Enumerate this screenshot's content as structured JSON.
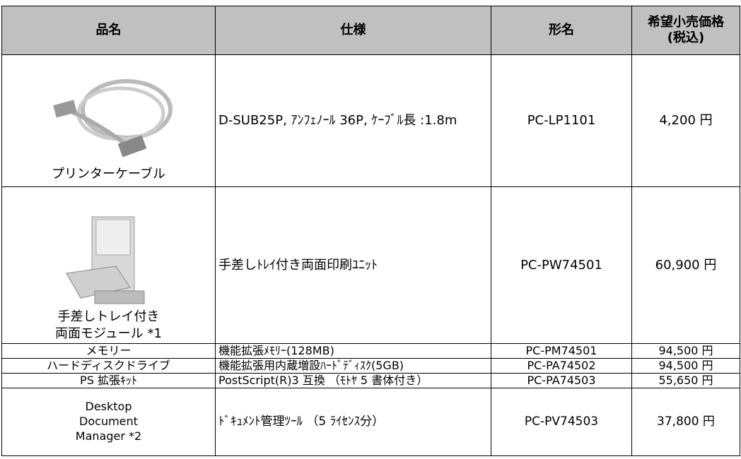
{
  "table": {
    "headers": [
      "品名",
      "仕様",
      "形名",
      [
        "希望小売価格",
        "(税込)"
      ]
    ],
    "rows": [
      {
        "name": [
          "プリンターケーブル"
        ],
        "spec": "D-SUB25P, ｱﾝﾌｪﾉｰﾙ 36P, ｹｰﾌﾞﾙ長 :1.8m",
        "model": "PC-LP1101",
        "price": "4,200 円"
      },
      {
        "name": [
          "手差しトレイ付き",
          "両面モジュール *1"
        ],
        "spec": "手差しﾄﾚｲ付き両面印刷ﾕﾆｯﾄ",
        "model": "PC-PW74501",
        "price": "60,900 円"
      },
      {
        "name": [
          "メモリー"
        ],
        "spec": "機能拡張ﾒﾓﾘｰ(128MB)",
        "model": "PC-PM74501",
        "price": "94,500 円"
      },
      {
        "name": [
          "ハードディスクドライブ"
        ],
        "spec": "機能拡張用内蔵増設ﾊｰﾄﾞﾃﾞｨｽｸ(5GB)",
        "model": "PC-PA74502",
        "price": "94,500 円"
      },
      {
        "name": [
          "PS 拡張ｷｯﾄ"
        ],
        "spec": "PostScript(R)3 互換 （ﾓﾄﾔ 5 書体付き）",
        "model": "PC-PA74503",
        "price": "55,650 円"
      },
      {
        "name": [
          "Desktop",
          "Document",
          "Manager *2"
        ],
        "spec": "ﾄﾞｷｭﾒﾝﾄ管理ﾂｰﾙ （5 ﾗｲｾﾝｽ分）",
        "model": "PC-PV74503",
        "price": "37,800 円"
      }
    ]
  }
}
